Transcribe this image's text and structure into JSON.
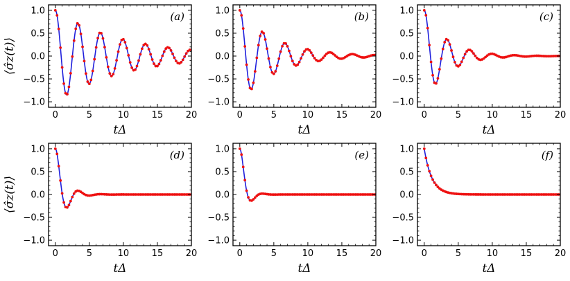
{
  "figure": {
    "ylabel": "⟨σ̂z(t)⟩",
    "xlabel": "tΔ"
  },
  "colors": {
    "line": "#1f1fdc",
    "markers": "#ee1111",
    "axes": "#000000"
  },
  "chart_data": [
    {
      "type": "line",
      "panel_label": "(a)",
      "xlabel": "tΔ",
      "ylabel": "⟨σ̂z(t)⟩",
      "xlim": [
        -1,
        20
      ],
      "ylim": [
        -1.12,
        1.12
      ],
      "xticks": [
        0,
        5,
        10,
        15,
        20
      ],
      "yticks": [
        -1.0,
        -0.5,
        0.0,
        0.5,
        1.0
      ],
      "xtick_labels": [
        "0",
        "5",
        "10",
        "15",
        "20"
      ],
      "ytick_labels": [
        "−1.0",
        "−0.5",
        "0.0",
        "0.5",
        "1.0"
      ],
      "model": {
        "omega": 1.9,
        "gamma": 0.1
      },
      "series": [
        {
          "style": "solid-line",
          "color": "#1f1fdc"
        },
        {
          "style": "dots",
          "color": "#ee1111"
        }
      ]
    },
    {
      "type": "line",
      "panel_label": "(b)",
      "xlabel": "tΔ",
      "ylabel": "",
      "xlim": [
        -1,
        20
      ],
      "ylim": [
        -1.12,
        1.12
      ],
      "xticks": [
        0,
        5,
        10,
        15,
        20
      ],
      "yticks": [
        -1.0,
        -0.5,
        0.0,
        0.5,
        1.0
      ],
      "xtick_labels": [
        "0",
        "5",
        "10",
        "15",
        "20"
      ],
      "ytick_labels": [
        "−1.0",
        "−0.5",
        "0.0",
        "0.5",
        "1.0"
      ],
      "model": {
        "omega": 1.9,
        "gamma": 0.19
      },
      "series": [
        {
          "style": "solid-line",
          "color": "#1f1fdc"
        },
        {
          "style": "dots",
          "color": "#ee1111"
        }
      ]
    },
    {
      "type": "line",
      "panel_label": "(c)",
      "xlabel": "tΔ",
      "ylabel": "",
      "xlim": [
        -1,
        20
      ],
      "ylim": [
        -1.12,
        1.12
      ],
      "xticks": [
        0,
        5,
        10,
        15,
        20
      ],
      "yticks": [
        -1.0,
        -0.5,
        0.0,
        0.5,
        1.0
      ],
      "xtick_labels": [
        "0",
        "5",
        "10",
        "15",
        "20"
      ],
      "ytick_labels": [
        "−1.0",
        "−0.5",
        "0.0",
        "0.5",
        "1.0"
      ],
      "model": {
        "omega": 1.9,
        "gamma": 0.3
      },
      "series": [
        {
          "style": "solid-line",
          "color": "#1f1fdc"
        },
        {
          "style": "dots",
          "color": "#ee1111"
        }
      ]
    },
    {
      "type": "line",
      "panel_label": "(d)",
      "xlabel": "tΔ",
      "ylabel": "⟨σ̂z(t)⟩",
      "xlim": [
        -1,
        20
      ],
      "ylim": [
        -1.12,
        1.12
      ],
      "xticks": [
        0,
        5,
        10,
        15,
        20
      ],
      "yticks": [
        -1.0,
        -0.5,
        0.0,
        0.5,
        1.0
      ],
      "xtick_labels": [
        "0",
        "5",
        "10",
        "15",
        "20"
      ],
      "ytick_labels": [
        "−1.0",
        "−0.5",
        "0.0",
        "0.5",
        "1.0"
      ],
      "model": {
        "omega": 1.9,
        "gamma": 0.75
      },
      "series": [
        {
          "style": "solid-line",
          "color": "#1f1fdc"
        },
        {
          "style": "dots",
          "color": "#ee1111"
        }
      ]
    },
    {
      "type": "line",
      "panel_label": "(e)",
      "xlabel": "tΔ",
      "ylabel": "",
      "xlim": [
        -1,
        20
      ],
      "ylim": [
        -1.12,
        1.12
      ],
      "xticks": [
        0,
        5,
        10,
        15,
        20
      ],
      "yticks": [
        -1.0,
        -0.5,
        0.0,
        0.5,
        1.0
      ],
      "xtick_labels": [
        "0",
        "5",
        "10",
        "15",
        "20"
      ],
      "ytick_labels": [
        "−1.0",
        "−0.5",
        "0.0",
        "0.5",
        "1.0"
      ],
      "model": {
        "omega": 1.9,
        "gamma": 1.2
      },
      "series": [
        {
          "style": "solid-line",
          "color": "#1f1fdc"
        },
        {
          "style": "dots",
          "color": "#ee1111"
        }
      ]
    },
    {
      "type": "line",
      "panel_label": "(f)",
      "xlabel": "tΔ",
      "ylabel": "",
      "xlim": [
        -1,
        20
      ],
      "ylim": [
        -1.12,
        1.12
      ],
      "xticks": [
        0,
        5,
        10,
        15,
        20
      ],
      "yticks": [
        -1.0,
        -0.5,
        0.0,
        0.5,
        1.0
      ],
      "xtick_labels": [
        "0",
        "5",
        "10",
        "15",
        "20"
      ],
      "ytick_labels": [
        "−1.0",
        "−0.5",
        "0.0",
        "0.5",
        "1.0"
      ],
      "model": {
        "omega": 0.0,
        "gamma": 0.9
      },
      "series": [
        {
          "style": "solid-line",
          "color": "#1f1fdc"
        },
        {
          "style": "dots",
          "color": "#ee1111"
        }
      ]
    }
  ]
}
